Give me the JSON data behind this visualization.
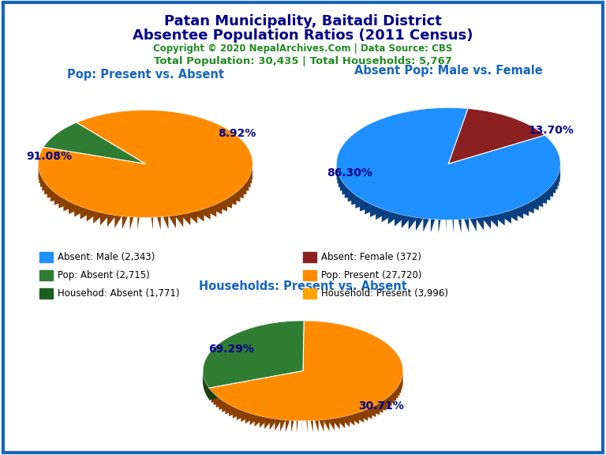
{
  "title_line1": "Patan Municipality, Baitadi District",
  "title_line2": "Absentee Population Ratios (2011 Census)",
  "title_color": "#00008B",
  "copyright_text": "Copyright © 2020 NepalArchives.Com | Data Source: CBS",
  "copyright_color": "#228B22",
  "stats_text": "Total Population: 30,435 | Total Households: 5,767",
  "stats_color": "#228B22",
  "pie1_title": "Pop: Present vs. Absent",
  "pie1_title_color": "#1565C0",
  "pie1_values": [
    27720,
    2715
  ],
  "pie1_colors": [
    "#FF8C00",
    "#2E7D32"
  ],
  "pie1_shadow_colors": [
    "#8B4000",
    "#1A4010"
  ],
  "pie1_labels": [
    "91.08%",
    "8.92%"
  ],
  "pie1_startangle": 162,
  "pie2_title": "Absent Pop: Male vs. Female",
  "pie2_title_color": "#1565C0",
  "pie2_values": [
    2343,
    372
  ],
  "pie2_colors": [
    "#1E90FF",
    "#8B2020"
  ],
  "pie2_shadow_colors": [
    "#0A4080",
    "#5A1010"
  ],
  "pie2_labels": [
    "86.30%",
    "13.70%"
  ],
  "pie2_startangle": 80,
  "pie3_title": "Households: Present vs. Absent",
  "pie3_title_color": "#1565C0",
  "pie3_values": [
    3996,
    1771
  ],
  "pie3_colors": [
    "#FF8C00",
    "#2E7D32"
  ],
  "pie3_shadow_colors": [
    "#8B4000",
    "#1A4010"
  ],
  "pie3_labels": [
    "69.29%",
    "30.71%"
  ],
  "pie3_startangle": 200,
  "legend_items": [
    {
      "label": "Absent: Male (2,343)",
      "color": "#1E90FF"
    },
    {
      "label": "Absent: Female (372)",
      "color": "#8B2020"
    },
    {
      "label": "Pop: Absent (2,715)",
      "color": "#2E7D32"
    },
    {
      "label": "Pop: Present (27,720)",
      "color": "#FF8C00"
    },
    {
      "label": "Househod: Absent (1,771)",
      "color": "#1B5E20"
    },
    {
      "label": "Household: Present (3,996)",
      "color": "#FFA500"
    }
  ],
  "background_color": "#FFFFFF",
  "border_color": "#1565C0",
  "label_color": "#00008B",
  "label_fontsize": 10
}
